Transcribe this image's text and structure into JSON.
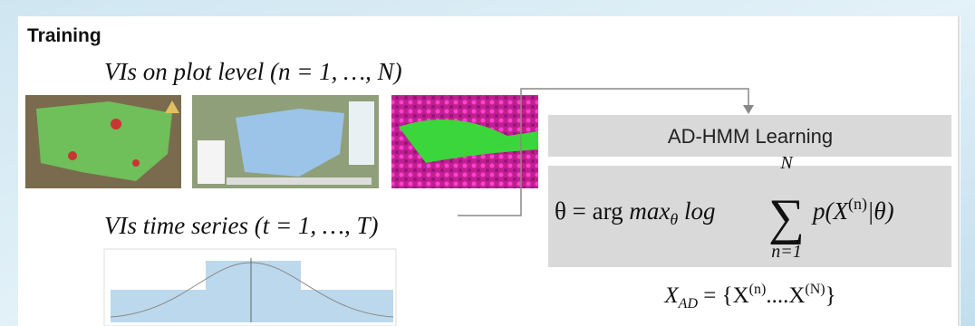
{
  "header": {
    "title": "Training"
  },
  "left": {
    "plot_level": "VIs on plot level (n = 1, …, N)",
    "time_series": "VIs time series (t = 1, …, T)"
  },
  "right": {
    "box_title": "AD-HMM Learning",
    "formula": {
      "lhs": "θ = arg ",
      "max": "max",
      "max_sub": "θ",
      "log": " log",
      "sum": "∑",
      "sum_upper": "N",
      "sum_lower": "n=1",
      "term": "p(X",
      "term_sup": "(n)",
      "term_end": "|θ)"
    },
    "set": {
      "lhs": "X",
      "lhs_sub": "AD",
      "mid": " = {X",
      "sup1": "(n)",
      "dots": "....X",
      "sup2": "(N)",
      "end": "}"
    }
  }
}
